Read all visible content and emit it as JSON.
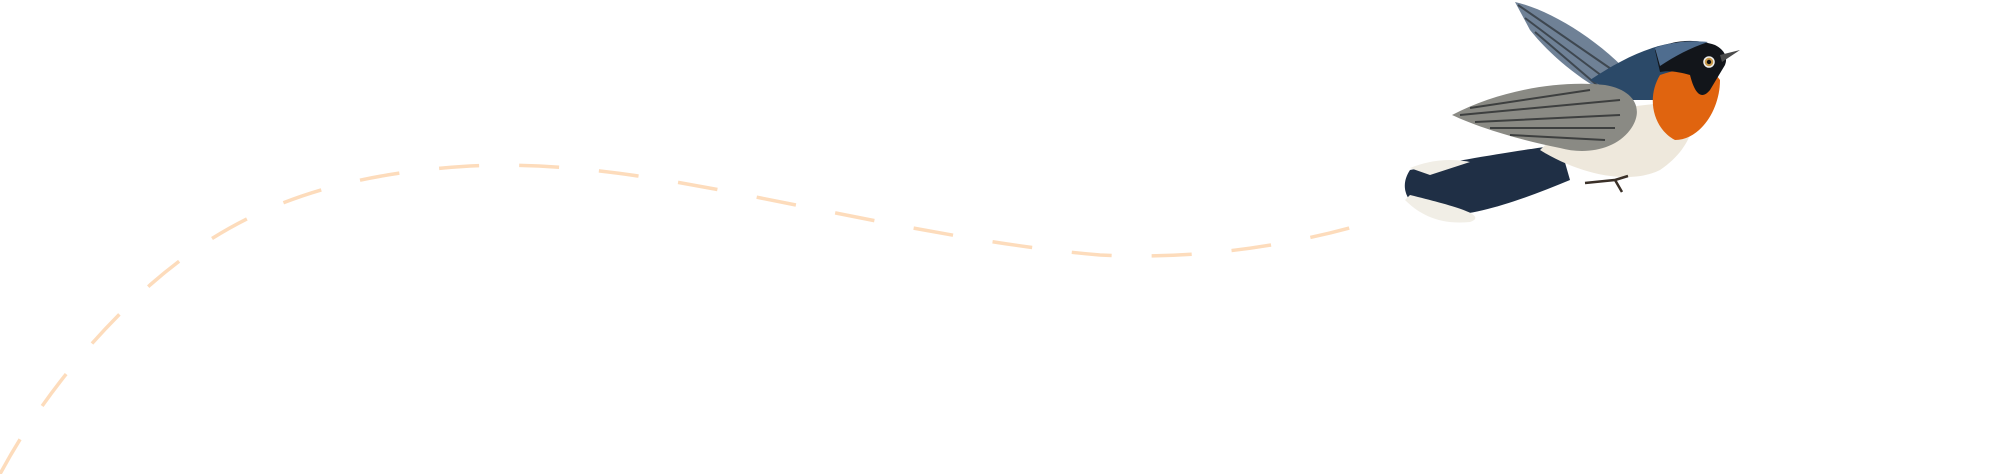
{
  "colors": {
    "background": "#ffffff",
    "flight_path": "#fddcbc",
    "bird_back": "#2a4460",
    "bird_wing": "#7d7f7d",
    "bird_throat": "#e2670f",
    "bird_belly": "#efeae0",
    "bird_head": "#111418"
  },
  "icons": {
    "bird": "flycatcher-illustration",
    "path": "dashed-flight-path"
  }
}
